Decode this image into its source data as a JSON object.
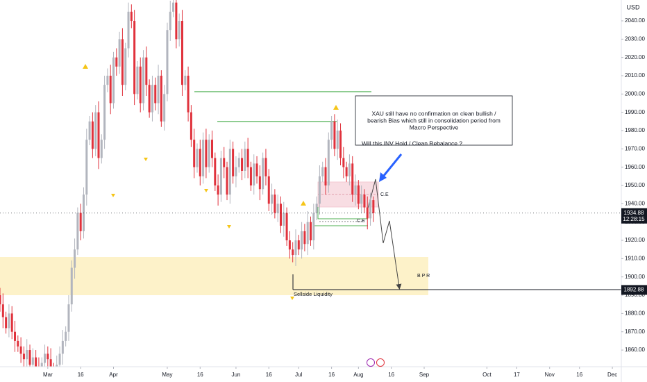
{
  "chart_data": {
    "type": "candlestick",
    "currency": "USD",
    "up_color": "#b2b5be",
    "down_color": "#e0323c",
    "grid": false,
    "ylim": [
      1850.9,
      2051.4
    ],
    "yticks": [
      {
        "value": 1860,
        "label": "1860.00"
      },
      {
        "value": 1870,
        "label": "1870.00"
      },
      {
        "value": 1880,
        "label": "1880.00"
      },
      {
        "value": 1890,
        "label": "1890.00"
      },
      {
        "value": 1900,
        "label": "1900.00"
      },
      {
        "value": 1910,
        "label": "1910.00"
      },
      {
        "value": 1920,
        "label": "1920.00"
      },
      {
        "value": 1930,
        "label": "1930.00"
      },
      {
        "value": 1940,
        "label": "1940.00"
      },
      {
        "value": 1950,
        "label": "1950.00"
      },
      {
        "value": 1960,
        "label": "1960.00"
      },
      {
        "value": 1970,
        "label": "1970.00"
      },
      {
        "value": 1980,
        "label": "1980.00"
      },
      {
        "value": 1990,
        "label": "1990.00"
      },
      {
        "value": 2000,
        "label": "2000.00"
      },
      {
        "value": 2010,
        "label": "2010.00"
      },
      {
        "value": 2020,
        "label": "2020.00"
      },
      {
        "value": 2030,
        "label": "2030.00"
      },
      {
        "value": 2040,
        "label": "2040.00"
      }
    ],
    "xlim": [
      0,
      208
    ],
    "xticks": [
      {
        "value": 16,
        "label": "Mar"
      },
      {
        "value": 27,
        "label": "16"
      },
      {
        "value": 38,
        "label": "Apr"
      },
      {
        "value": 56,
        "label": "May"
      },
      {
        "value": 67,
        "label": "16"
      },
      {
        "value": 79,
        "label": "Jun"
      },
      {
        "value": 90,
        "label": "16"
      },
      {
        "value": 100,
        "label": "Jul"
      },
      {
        "value": 111,
        "label": "16"
      },
      {
        "value": 120,
        "label": "Aug"
      },
      {
        "value": 131,
        "label": "16"
      },
      {
        "value": 142,
        "label": "Sep"
      },
      {
        "value": 163,
        "label": "Oct"
      },
      {
        "value": 173,
        "label": "17"
      },
      {
        "value": 184,
        "label": "Nov"
      },
      {
        "value": 194,
        "label": "16"
      },
      {
        "value": 205,
        "label": "Dec"
      }
    ],
    "candles": [
      [
        1890,
        1894,
        1881,
        1885
      ],
      [
        1885,
        1891,
        1872,
        1878
      ],
      [
        1878,
        1881,
        1869,
        1872
      ],
      [
        1872,
        1885,
        1867,
        1880
      ],
      [
        1880,
        1884,
        1866,
        1870
      ],
      [
        1870,
        1876,
        1859,
        1865
      ],
      [
        1865,
        1868,
        1859,
        1862
      ],
      [
        1862,
        1867,
        1853,
        1858
      ],
      [
        1858,
        1862,
        1851,
        1855
      ],
      [
        1855,
        1866,
        1849,
        1860
      ],
      [
        1860,
        1863,
        1849,
        1852
      ],
      [
        1852,
        1861,
        1847,
        1856
      ],
      [
        1856,
        1860,
        1846,
        1850
      ],
      [
        1850,
        1856,
        1842,
        1848
      ],
      [
        1848,
        1856,
        1845,
        1853
      ],
      [
        1853,
        1863,
        1848,
        1858
      ],
      [
        1858,
        1862,
        1851,
        1855
      ],
      [
        1855,
        1861,
        1844,
        1850
      ],
      [
        1850,
        1853,
        1843,
        1846
      ],
      [
        1846,
        1857,
        1841,
        1852
      ],
      [
        1852,
        1862,
        1848,
        1858
      ],
      [
        1858,
        1871,
        1852,
        1865
      ],
      [
        1865,
        1873,
        1862,
        1870
      ],
      [
        1870,
        1890,
        1865,
        1885
      ],
      [
        1885,
        1909,
        1881,
        1905
      ],
      [
        1905,
        1921,
        1899,
        1915
      ],
      [
        1915,
        1938,
        1912,
        1935
      ],
      [
        1935,
        1940,
        1920,
        1925
      ],
      [
        1925,
        1949,
        1921,
        1945
      ],
      [
        1945,
        1981,
        1939,
        1975
      ],
      [
        1975,
        1988,
        1972,
        1985
      ],
      [
        1985,
        1990,
        1965,
        1970
      ],
      [
        1970,
        1994,
        1966,
        1990
      ],
      [
        1990,
        1996,
        1959,
        1965
      ],
      [
        1965,
        1978,
        1962,
        1975
      ],
      [
        1975,
        2010,
        1970,
        2005
      ],
      [
        2005,
        2014,
        2001,
        2010
      ],
      [
        2010,
        2016,
        1989,
        1995
      ],
      [
        1995,
        2023,
        1992,
        2020
      ],
      [
        2020,
        2025,
        2010,
        2015
      ],
      [
        2015,
        2034,
        2011,
        2030
      ],
      [
        2030,
        2036,
        1999,
        2005
      ],
      [
        2005,
        2028,
        2002,
        2025
      ],
      [
        2025,
        2050,
        2020,
        2045
      ],
      [
        2045,
        2049,
        2036,
        2040
      ],
      [
        2040,
        2046,
        1994,
        2000
      ],
      [
        2000,
        2018,
        1997,
        2015
      ],
      [
        2015,
        2020,
        1990,
        1995
      ],
      [
        1995,
        2024,
        1991,
        2020
      ],
      [
        2020,
        2026,
        1999,
        2005
      ],
      [
        2005,
        2008,
        1987,
        1990
      ],
      [
        1990,
        2010,
        1985,
        2005
      ],
      [
        2005,
        2009,
        1991,
        1995
      ],
      [
        1995,
        2016,
        1989,
        2010
      ],
      [
        2010,
        2013,
        1982,
        1985
      ],
      [
        1985,
        2005,
        1980,
        2000
      ],
      [
        2000,
        2039,
        1996,
        2035
      ],
      [
        2035,
        2051,
        2029,
        2045
      ],
      [
        2045,
        2053,
        2042,
        2050
      ],
      [
        2050,
        2055,
        2025,
        2030
      ],
      [
        2030,
        2044,
        2026,
        2040
      ],
      [
        2040,
        2046,
        1999,
        2005
      ],
      [
        2005,
        2013,
        2002,
        2010
      ],
      [
        2010,
        2015,
        1985,
        1990
      ],
      [
        1990,
        1994,
        1971,
        1975
      ],
      [
        1975,
        1981,
        1954,
        1960
      ],
      [
        1960,
        1973,
        1957,
        1970
      ],
      [
        1970,
        1975,
        1950,
        1955
      ],
      [
        1955,
        1979,
        1951,
        1975
      ],
      [
        1975,
        1981,
        1954,
        1960
      ],
      [
        1960,
        1978,
        1957,
        1975
      ],
      [
        1975,
        1980,
        1960,
        1965
      ],
      [
        1965,
        1968,
        1947,
        1950
      ],
      [
        1950,
        1956,
        1939,
        1945
      ],
      [
        1945,
        1969,
        1941,
        1965
      ],
      [
        1965,
        1971,
        1954,
        1960
      ],
      [
        1960,
        1963,
        1942,
        1945
      ],
      [
        1945,
        1975,
        1940,
        1970
      ],
      [
        1970,
        1974,
        1951,
        1955
      ],
      [
        1955,
        1966,
        1949,
        1960
      ],
      [
        1960,
        1968,
        1957,
        1965
      ],
      [
        1965,
        1970,
        1953,
        1958
      ],
      [
        1958,
        1974,
        1954,
        1970
      ],
      [
        1970,
        1976,
        1954,
        1960
      ],
      [
        1960,
        1963,
        1947,
        1950
      ],
      [
        1950,
        1967,
        1945,
        1962
      ],
      [
        1962,
        1966,
        1951,
        1955
      ],
      [
        1955,
        1961,
        1942,
        1948
      ],
      [
        1948,
        1968,
        1945,
        1965
      ],
      [
        1965,
        1970,
        1950,
        1955
      ],
      [
        1955,
        1959,
        1936,
        1940
      ],
      [
        1940,
        1951,
        1934,
        1945
      ],
      [
        1945,
        1948,
        1932,
        1935
      ],
      [
        1935,
        1945,
        1930,
        1940
      ],
      [
        1940,
        1944,
        1924,
        1928
      ],
      [
        1928,
        1941,
        1922,
        1935
      ],
      [
        1935,
        1938,
        1917,
        1920
      ],
      [
        1920,
        1925,
        1910,
        1915
      ],
      [
        1915,
        1919,
        1908,
        1912
      ],
      [
        1912,
        1926,
        1906,
        1920
      ],
      [
        1920,
        1923,
        1912,
        1915
      ],
      [
        1915,
        1930,
        1910,
        1925
      ],
      [
        1925,
        1929,
        1914,
        1918
      ],
      [
        1918,
        1936,
        1912,
        1930
      ],
      [
        1930,
        1933,
        1917,
        1920
      ],
      [
        1920,
        1940,
        1915,
        1935
      ],
      [
        1935,
        1944,
        1931,
        1940
      ],
      [
        1940,
        1961,
        1934,
        1955
      ],
      [
        1955,
        1963,
        1952,
        1960
      ],
      [
        1960,
        1965,
        1945,
        1950
      ],
      [
        1950,
        1979,
        1946,
        1975
      ],
      [
        1975,
        1988,
        1970,
        1985
      ],
      [
        1985,
        1989,
        1966,
        1970
      ],
      [
        1970,
        1986,
        1964,
        1980
      ],
      [
        1980,
        1984,
        1961,
        1965
      ],
      [
        1965,
        1971,
        1954,
        1960
      ],
      [
        1960,
        1963,
        1952,
        1955
      ],
      [
        1955,
        1967,
        1950,
        1962
      ],
      [
        1962,
        1966,
        1941,
        1945
      ],
      [
        1945,
        1956,
        1939,
        1950
      ],
      [
        1950,
        1953,
        1937,
        1940
      ],
      [
        1940,
        1950,
        1935,
        1945
      ],
      [
        1945,
        1948,
        1935,
        1938
      ],
      [
        1938,
        1944,
        1926,
        1932
      ],
      [
        1932,
        1946,
        1928,
        1942
      ],
      [
        1942,
        1944,
        1930,
        1934.88
      ]
    ],
    "last_price": 1934.88,
    "countdown": "12:28:15",
    "level_price": 1892.88,
    "annotation_lines": [
      "XAU still have no confirmation on clean bullish /",
      "bearish Bias which still in consolidation period from",
      "Macro Perspective"
    ],
    "question": "Will this INV Hold / Clean Rebalance ?",
    "ce_upper": "C.E",
    "ce_lower": "C.E",
    "bpr": "B P R",
    "sellside": "Sellside Liquidity"
  }
}
